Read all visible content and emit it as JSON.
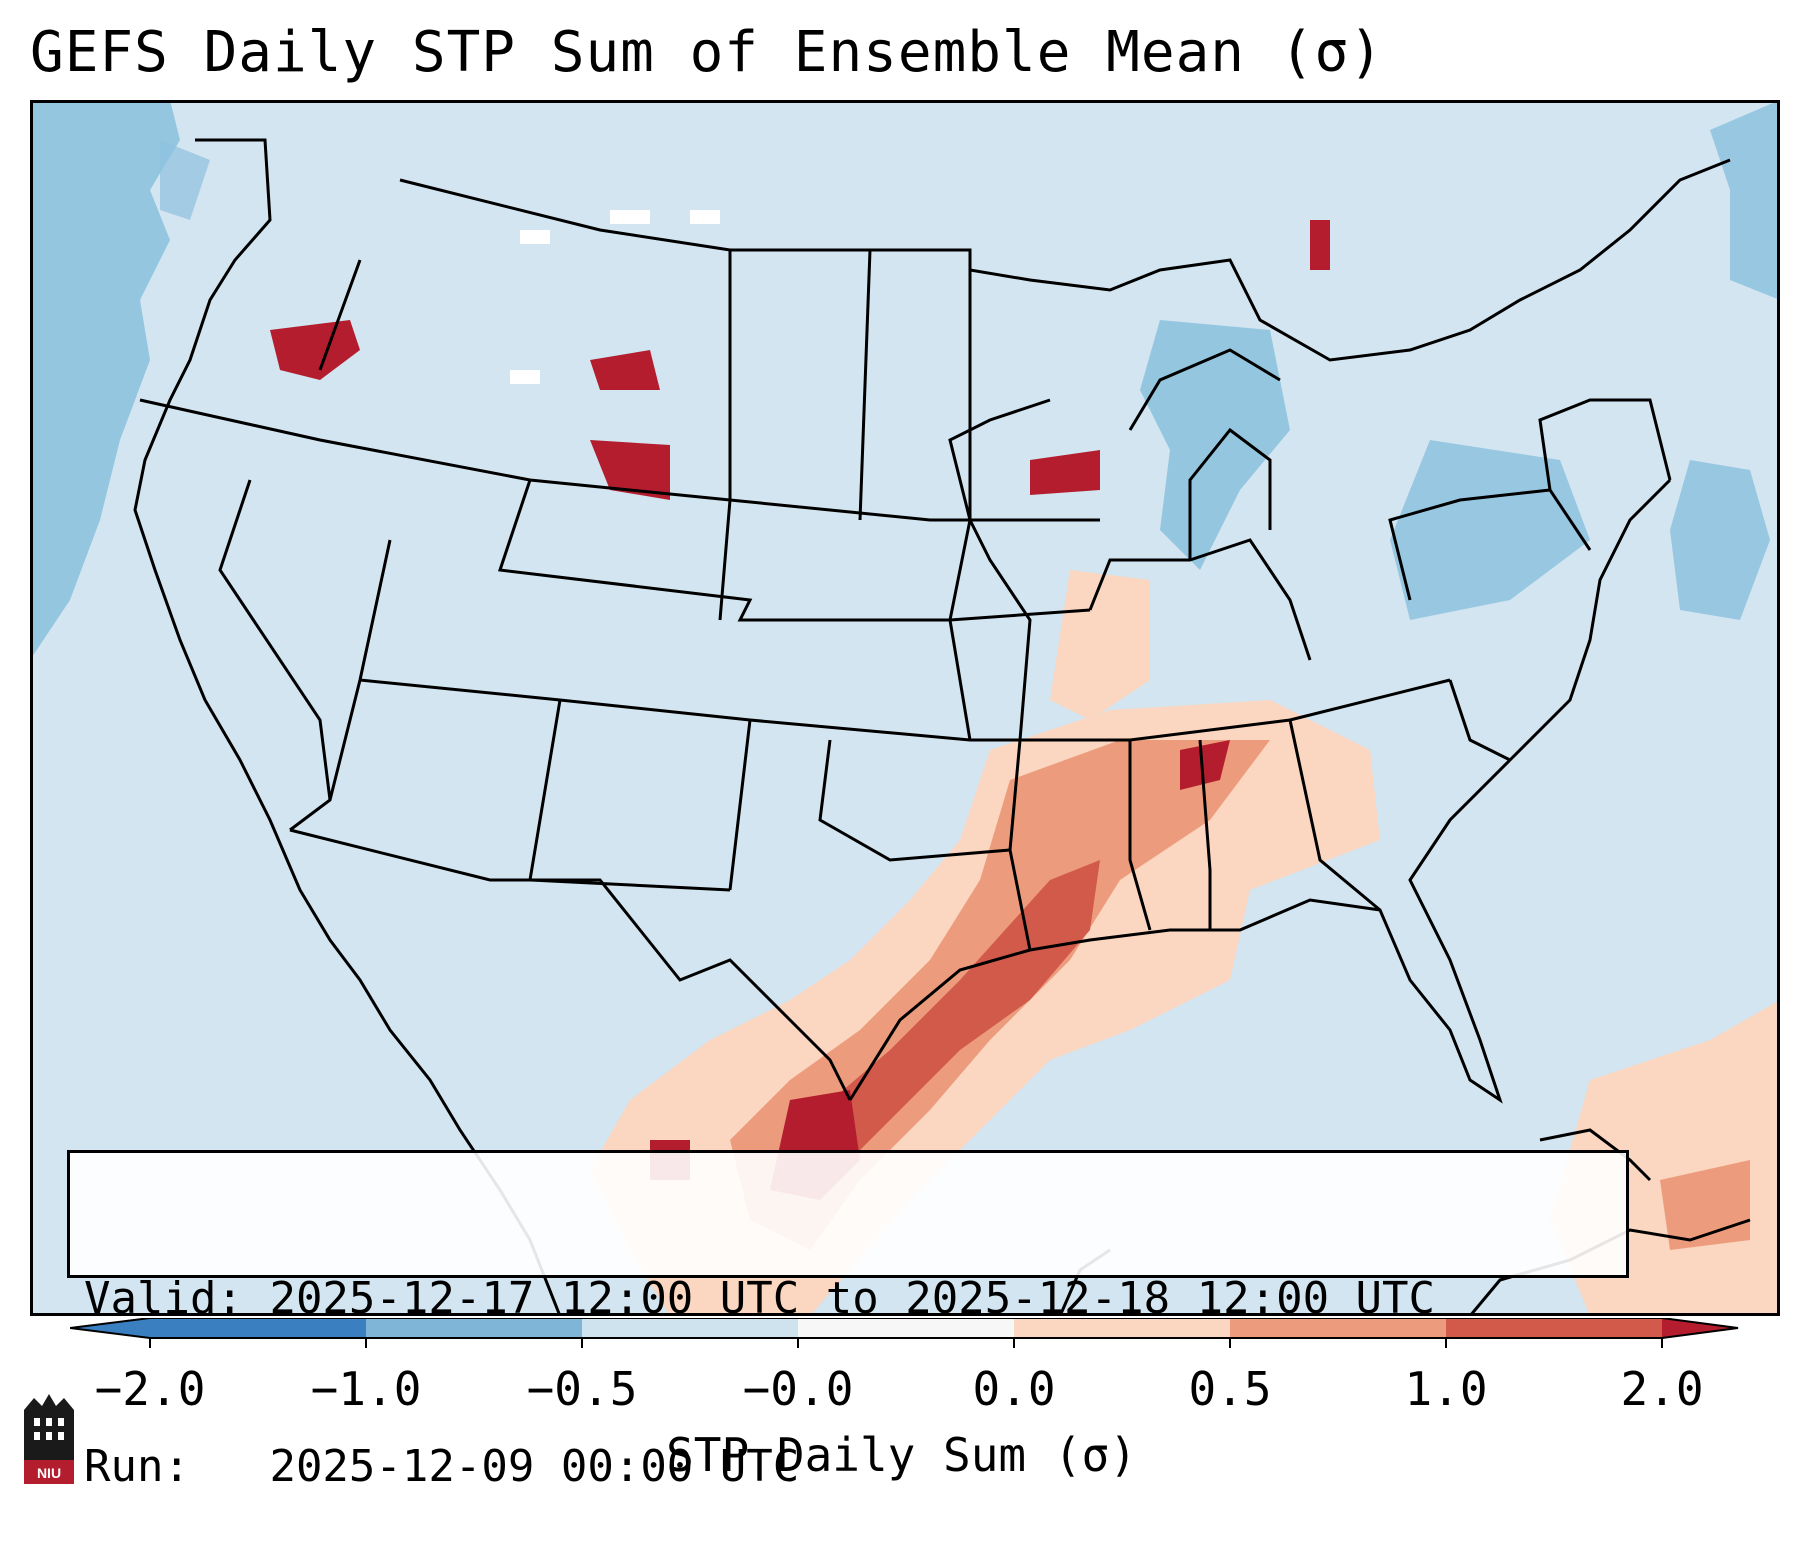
{
  "title": "GEFS Daily STP Sum of Ensemble Mean (σ)",
  "info": {
    "valid_label": "Valid:",
    "valid_value": "2025-12-17 12:00 UTC to 2025-12-18 12:00 UTC",
    "run_label": "Run:",
    "run_value": "2025-12-09 00:00 UTC"
  },
  "colorbar": {
    "label": "STP Daily Sum (σ)",
    "ticks": [
      "−2.0",
      "−1.0",
      "−0.5",
      "−0.0",
      "0.0",
      "0.5",
      "1.0",
      "2.0"
    ],
    "colors": [
      "#3a7fbf",
      "#7fb5d6",
      "#cfe3ef",
      "#f7f7f7",
      "#fbd6c0",
      "#ec9c7c",
      "#d25a4b",
      "#b41d2e"
    ]
  },
  "logo": {
    "text": "NIU",
    "color": "#b41d2e"
  },
  "colors": {
    "background_field": "#d2e5f0",
    "ocean_negative": "#8ec2de",
    "outline": "#000000"
  }
}
